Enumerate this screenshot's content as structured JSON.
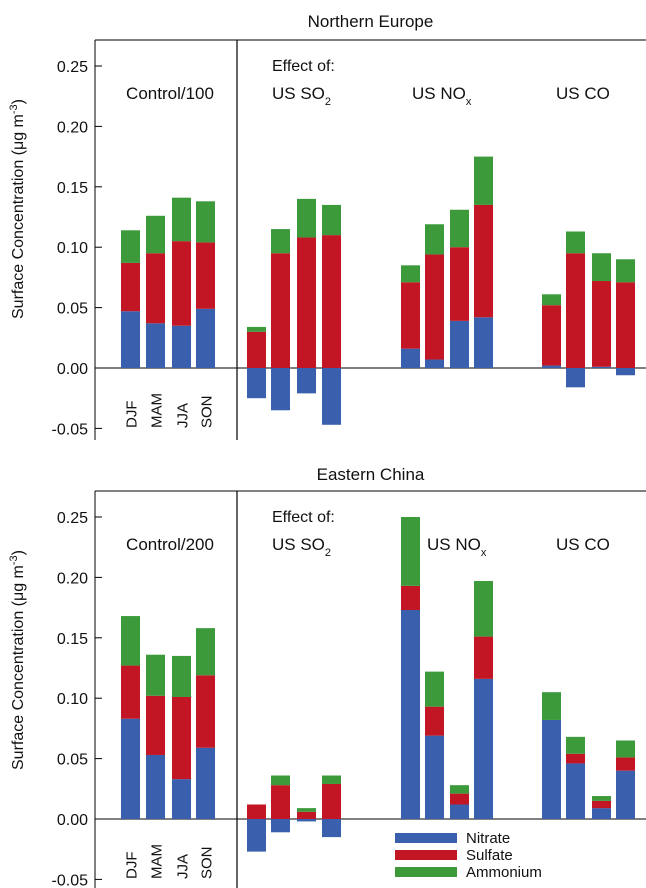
{
  "colors": {
    "Nitrate": "#3a5fad",
    "Sulfate": "#c21624",
    "Ammonium": "#3c9a3b"
  },
  "chart_data": [
    {
      "type": "bar",
      "stacked": true,
      "title": "Northern Europe",
      "ylabel": "Surface Concentration (μg m⁻³)",
      "ylabel_parts": {
        "main": "Surface Concentration (μg m",
        "sup": "-3",
        "end": ")"
      },
      "ylim": [
        -0.06,
        0.27
      ],
      "yticks": [
        "0.25",
        "0.20",
        "0.15",
        "0.10",
        "0.05",
        "0.00",
        "-0.05"
      ],
      "ytick_values": [
        0.25,
        0.2,
        0.15,
        0.1,
        0.05,
        0.0,
        -0.05
      ],
      "categories": [
        "DJF",
        "MAM",
        "JJA",
        "SON"
      ],
      "control_label": "Control/100",
      "effect_label": "Effect of:",
      "group_labels": [
        {
          "main": "US SO",
          "sub": "2"
        },
        {
          "main": "US NO",
          "sub": "x"
        },
        {
          "main": "US CO",
          "sub": ""
        }
      ],
      "groups": [
        {
          "name": "Control/100",
          "Nitrate": [
            0.047,
            0.037,
            0.035,
            0.049
          ],
          "Sulfate": [
            0.04,
            0.058,
            0.07,
            0.055
          ],
          "Ammonium": [
            0.027,
            0.031,
            0.036,
            0.034
          ]
        },
        {
          "name": "US SO2",
          "Nitrate": [
            -0.025,
            -0.035,
            -0.021,
            -0.047
          ],
          "Sulfate": [
            0.03,
            0.095,
            0.108,
            0.11
          ],
          "Ammonium": [
            0.004,
            0.02,
            0.032,
            0.025
          ]
        },
        {
          "name": "US NOx",
          "Nitrate": [
            0.016,
            0.007,
            0.039,
            0.042
          ],
          "Sulfate": [
            0.055,
            0.087,
            0.061,
            0.093
          ],
          "Ammonium": [
            0.014,
            0.025,
            0.031,
            0.04
          ]
        },
        {
          "name": "US CO",
          "Nitrate": [
            0.002,
            -0.016,
            0.001,
            -0.006
          ],
          "Sulfate": [
            0.05,
            0.095,
            0.071,
            0.071
          ],
          "Ammonium": [
            0.009,
            0.018,
            0.023,
            0.019
          ]
        }
      ]
    },
    {
      "type": "bar",
      "stacked": true,
      "title": "Eastern China",
      "ylabel": "Surface Concentration (μg m⁻³)",
      "ylabel_parts": {
        "main": "Surface Concentration (μg m",
        "sup": "-3",
        "end": ")"
      },
      "ylim": [
        -0.06,
        0.27
      ],
      "yticks": [
        "0.25",
        "0.20",
        "0.15",
        "0.10",
        "0.05",
        "0.00",
        "-0.05"
      ],
      "ytick_values": [
        0.25,
        0.2,
        0.15,
        0.1,
        0.05,
        0.0,
        -0.05
      ],
      "categories": [
        "DJF",
        "MAM",
        "JJA",
        "SON"
      ],
      "control_label": "Control/200",
      "effect_label": "Effect of:",
      "group_labels": [
        {
          "main": "US SO",
          "sub": "2"
        },
        {
          "main": "US NO",
          "sub": "x"
        },
        {
          "main": "US CO",
          "sub": ""
        }
      ],
      "groups": [
        {
          "name": "Control/200",
          "Nitrate": [
            0.083,
            0.053,
            0.033,
            0.059
          ],
          "Sulfate": [
            0.044,
            0.049,
            0.068,
            0.06
          ],
          "Ammonium": [
            0.041,
            0.034,
            0.034,
            0.039
          ]
        },
        {
          "name": "US SO2",
          "Nitrate": [
            -0.027,
            -0.011,
            -0.002,
            -0.015
          ],
          "Sulfate": [
            0.012,
            0.028,
            0.006,
            0.029
          ],
          "Ammonium": [
            0.0,
            0.008,
            0.003,
            0.007
          ]
        },
        {
          "name": "US NOx",
          "Nitrate": [
            0.173,
            0.069,
            0.012,
            0.116
          ],
          "Sulfate": [
            0.02,
            0.024,
            0.009,
            0.035
          ],
          "Ammonium": [
            0.057,
            0.029,
            0.007,
            0.046
          ]
        },
        {
          "name": "US CO",
          "Nitrate": [
            0.082,
            0.046,
            0.009,
            0.04
          ],
          "Sulfate": [
            0.0,
            0.008,
            0.006,
            0.011
          ],
          "Ammonium": [
            0.023,
            0.014,
            0.004,
            0.014
          ]
        }
      ]
    }
  ],
  "legend": {
    "position": "bottom",
    "items": [
      {
        "name": "Nitrate",
        "color": "#3a5fad"
      },
      {
        "name": "Sulfate",
        "color": "#c21624"
      },
      {
        "name": "Ammonium",
        "color": "#3c9a3b"
      }
    ]
  }
}
